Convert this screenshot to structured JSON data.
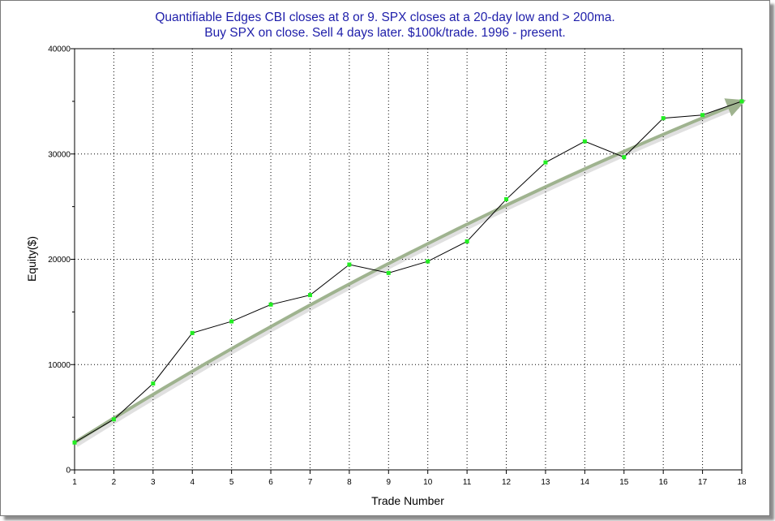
{
  "chart_data": {
    "type": "line",
    "title": "Quantifiable Edges CBI closes at 8 or 9. SPX closes at a 20-day low and > 200ma.",
    "subtitle": "Buy SPX on close. Sell 4 days later. $100k/trade. 1996 - present.",
    "xlabel": "Trade Number",
    "ylabel": "Equity($)",
    "x": [
      1,
      2,
      3,
      4,
      5,
      6,
      7,
      8,
      9,
      10,
      11,
      12,
      13,
      14,
      15,
      16,
      17,
      18
    ],
    "series": [
      {
        "values": [
          2600,
          4800,
          8200,
          13000,
          14100,
          15700,
          16600,
          19500,
          18700,
          19800,
          21700,
          25700,
          29200,
          31200,
          29700,
          33400,
          33700,
          35000
        ]
      }
    ],
    "xlim": [
      1,
      18
    ],
    "ylim": [
      0,
      40000
    ],
    "xticks": [
      1,
      2,
      3,
      4,
      5,
      6,
      7,
      8,
      9,
      10,
      11,
      12,
      13,
      14,
      15,
      16,
      17,
      18
    ],
    "yticks": [
      0,
      10000,
      20000,
      30000,
      40000
    ],
    "grid": true,
    "trend_arrow": {
      "from": [
        1,
        2600
      ],
      "to": [
        18,
        35000
      ],
      "color": "#9fb38f"
    },
    "colors": {
      "line": "#000000",
      "marker": "#22ee22",
      "title": "#1e1eaa",
      "grid": "#000000"
    }
  }
}
